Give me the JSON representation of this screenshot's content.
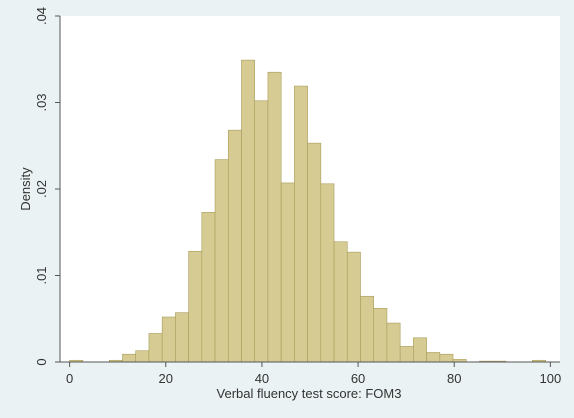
{
  "chart_data": {
    "type": "bar",
    "subtype": "histogram",
    "title": "",
    "xlabel": "Verbal fluency test score: FOM3",
    "ylabel": "Density",
    "xlim": [
      -2,
      102
    ],
    "ylim": [
      0,
      0.04
    ],
    "x_ticks": [
      0,
      20,
      40,
      60,
      80,
      100
    ],
    "y_ticks": [
      0,
      0.01,
      0.02,
      0.03,
      0.04
    ],
    "y_tick_labels": [
      "0",
      ".01",
      ".02",
      ".03",
      ".04"
    ],
    "bin_width": 2.75,
    "bins": [
      {
        "start": 0.0,
        "value": 0.0002
      },
      {
        "start": 2.75,
        "value": 0.0
      },
      {
        "start": 5.5,
        "value": 0.0
      },
      {
        "start": 8.25,
        "value": 0.0002
      },
      {
        "start": 11.0,
        "value": 0.0009
      },
      {
        "start": 13.75,
        "value": 0.0013
      },
      {
        "start": 16.5,
        "value": 0.0033
      },
      {
        "start": 19.25,
        "value": 0.0052
      },
      {
        "start": 22.0,
        "value": 0.0057
      },
      {
        "start": 24.75,
        "value": 0.0128
      },
      {
        "start": 27.5,
        "value": 0.0173
      },
      {
        "start": 30.25,
        "value": 0.0234
      },
      {
        "start": 33.0,
        "value": 0.0268
      },
      {
        "start": 35.75,
        "value": 0.0349
      },
      {
        "start": 38.5,
        "value": 0.0302
      },
      {
        "start": 41.25,
        "value": 0.0335
      },
      {
        "start": 44.0,
        "value": 0.0207
      },
      {
        "start": 46.75,
        "value": 0.0319
      },
      {
        "start": 49.5,
        "value": 0.0253
      },
      {
        "start": 52.25,
        "value": 0.0206
      },
      {
        "start": 55.0,
        "value": 0.0139
      },
      {
        "start": 57.75,
        "value": 0.0127
      },
      {
        "start": 60.5,
        "value": 0.0076
      },
      {
        "start": 63.25,
        "value": 0.0062
      },
      {
        "start": 66.0,
        "value": 0.0045
      },
      {
        "start": 68.75,
        "value": 0.0018
      },
      {
        "start": 71.5,
        "value": 0.0028
      },
      {
        "start": 74.25,
        "value": 0.0011
      },
      {
        "start": 77.0,
        "value": 0.0009
      },
      {
        "start": 79.75,
        "value": 0.0003
      },
      {
        "start": 82.5,
        "value": 0.0
      },
      {
        "start": 85.25,
        "value": 0.0001
      },
      {
        "start": 88.0,
        "value": 0.0001
      },
      {
        "start": 90.75,
        "value": 0.0
      },
      {
        "start": 93.5,
        "value": 0.0
      },
      {
        "start": 96.25,
        "value": 0.0002
      }
    ],
    "grid": false,
    "legend": "none",
    "colors": {
      "bar_fill": "#d6cc93",
      "bar_stroke": "#a89c5a",
      "plot_background": "#ffffff",
      "figure_background": "#eaf2f3"
    }
  }
}
